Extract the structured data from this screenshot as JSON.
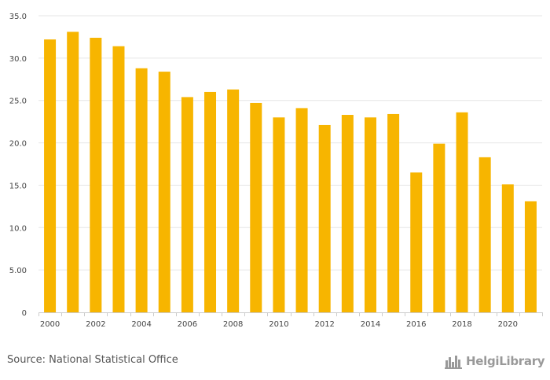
{
  "chart_data": {
    "type": "bar",
    "categories": [
      "2000",
      "2001",
      "2002",
      "2003",
      "2004",
      "2005",
      "2006",
      "2007",
      "2008",
      "2009",
      "2010",
      "2011",
      "2012",
      "2013",
      "2014",
      "2015",
      "2016",
      "2017",
      "2018",
      "2019",
      "2020",
      "2021"
    ],
    "values": [
      32.2,
      33.1,
      32.4,
      31.4,
      28.8,
      28.4,
      25.4,
      26.0,
      26.3,
      24.7,
      23.0,
      24.1,
      22.1,
      23.3,
      23.0,
      23.4,
      16.5,
      19.9,
      23.6,
      18.3,
      15.1,
      13.1
    ],
    "x_tick_labels": [
      "2000",
      "2002",
      "2004",
      "2006",
      "2008",
      "2010",
      "2012",
      "2014",
      "2016",
      "2018",
      "2020"
    ],
    "y_tick_labels": [
      "0",
      "5.00",
      "10.0",
      "15.0",
      "20.0",
      "25.0",
      "30.0",
      "35.0"
    ],
    "ylim": [
      0,
      35
    ],
    "grid": true,
    "bar_color": "#f7b500",
    "title": "",
    "xlabel": "",
    "ylabel": ""
  },
  "footer": {
    "source": "Source: National Statistical Office",
    "logo_text": "HelgiLibrary",
    "logo_icon": "city-skyline-icon"
  }
}
